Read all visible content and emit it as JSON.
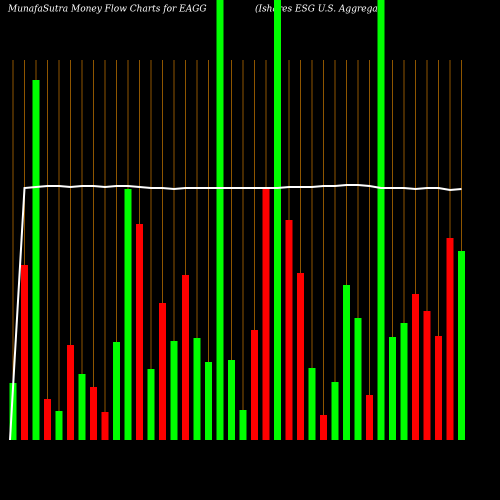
{
  "chart_data": {
    "type": "bar",
    "title": "MunafaSutra  Money Flow  Charts for EAGG",
    "subtitle": "(Ishares ESG U.S. Aggregat",
    "categories": [
      null,
      null,
      null,
      null,
      null,
      null,
      null,
      null,
      null,
      null,
      null,
      null,
      null,
      null,
      null,
      null,
      null,
      null,
      null,
      null,
      null,
      null,
      null,
      null,
      null,
      null,
      null,
      null,
      null,
      null,
      null,
      null,
      null,
      null,
      null,
      null,
      null,
      null,
      null,
      null
    ],
    "values": [
      57,
      175,
      360,
      41,
      29,
      95,
      66,
      53,
      28,
      98,
      251,
      216,
      71,
      137,
      99,
      165,
      102,
      78,
      460,
      80,
      30,
      110,
      252,
      460,
      220,
      167,
      72,
      25,
      58,
      155,
      122,
      45,
      460,
      103,
      117,
      146,
      129,
      104,
      202,
      189
    ],
    "colors": [
      "#00ff00",
      "#ff0000",
      "#00ff00",
      "#ff0000",
      "#00ff00",
      "#ff0000",
      "#00ff00",
      "#ff0000",
      "#ff0000",
      "#00ff00",
      "#00ff00",
      "#ff0000",
      "#00ff00",
      "#ff0000",
      "#00ff00",
      "#ff0000",
      "#00ff00",
      "#00ff00",
      "#00ff00",
      "#00ff00",
      "#00ff00",
      "#ff0000",
      "#ff0000",
      "#00ff00",
      "#ff0000",
      "#ff0000",
      "#00ff00",
      "#ff0000",
      "#00ff00",
      "#00ff00",
      "#00ff00",
      "#ff0000",
      "#00ff00",
      "#00ff00",
      "#00ff00",
      "#ff0000",
      "#ff0000",
      "#ff0000",
      "#ff0000",
      "#00ff00"
    ],
    "line": {
      "color": "#ffffff",
      "values": [
        0,
        252,
        253,
        254,
        254,
        253,
        254,
        254,
        253,
        254,
        254,
        253,
        252,
        252,
        251,
        252,
        252,
        252,
        252,
        252,
        252,
        252,
        252,
        252,
        253,
        253,
        253,
        254,
        254,
        255,
        255,
        254,
        252,
        252,
        252,
        251,
        252,
        252,
        250,
        251
      ]
    },
    "ylim": [
      0,
      440
    ]
  }
}
